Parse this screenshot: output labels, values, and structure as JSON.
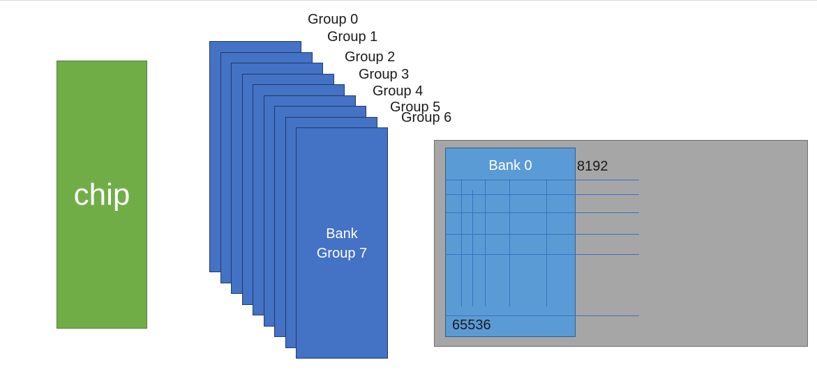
{
  "colors": {
    "chip": "#70ad47",
    "bank_group": "#4472c4",
    "panel": "#a6a6a6",
    "bank": "#5b9bd5"
  },
  "chip": {
    "label": "chip"
  },
  "groups": [
    {
      "label": "Group 0"
    },
    {
      "label": "Group 1"
    },
    {
      "label": "Group 2"
    },
    {
      "label": "Group 3"
    },
    {
      "label": "Group 4"
    },
    {
      "label": "Group 5"
    },
    {
      "label": "Group 6"
    }
  ],
  "front_group": {
    "line1": "Bank",
    "line2": "Group 7"
  },
  "bank": {
    "title": "Bank 0",
    "columns_label": "8192",
    "rows_label": "65536"
  }
}
